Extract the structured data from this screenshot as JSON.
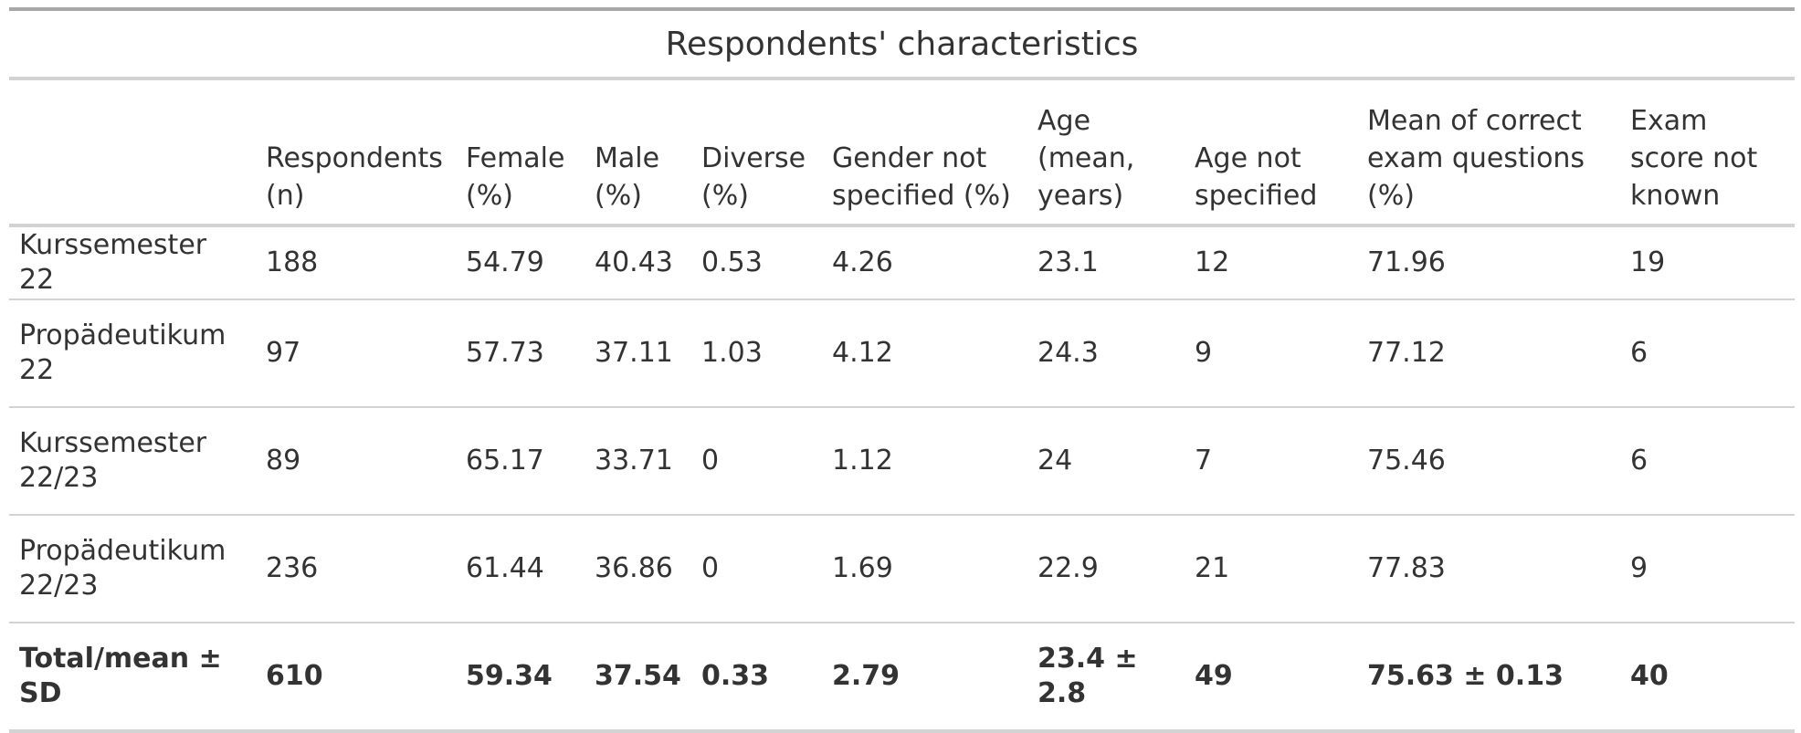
{
  "table": {
    "title": "Respondents' characteristics",
    "columns": [
      "",
      "Respondents (n)",
      "Female (%)",
      "Male (%)",
      "Diverse (%)",
      "Gender not specified (%)",
      "Age (mean, years)",
      "Age not specified",
      "Mean of correct exam questions (%)",
      "Exam score not known"
    ],
    "rows": [
      [
        "Kurssemester 22",
        "188",
        "54.79",
        "40.43",
        "0.53",
        "4.26",
        "23.1",
        "12",
        "71.96",
        "19"
      ],
      [
        "Propädeutikum 22",
        "97",
        "57.73",
        "37.11",
        "1.03",
        "4.12",
        "24.3",
        "9",
        "77.12",
        "6"
      ],
      [
        "Kurssemester 22/23",
        "89",
        "65.17",
        "33.71",
        "0",
        "1.12",
        "24",
        "7",
        "75.46",
        "6"
      ],
      [
        "Propädeutikum 22/23",
        "236",
        "61.44",
        "36.86",
        "0",
        "1.69",
        "22.9",
        "21",
        "77.83",
        "9"
      ],
      [
        "Total/mean ± SD",
        "610",
        "59.34",
        "37.54",
        "0.33",
        "2.79",
        "23.4 ± 2.8",
        "49",
        "75.63 ± 0.13",
        "40"
      ]
    ]
  }
}
